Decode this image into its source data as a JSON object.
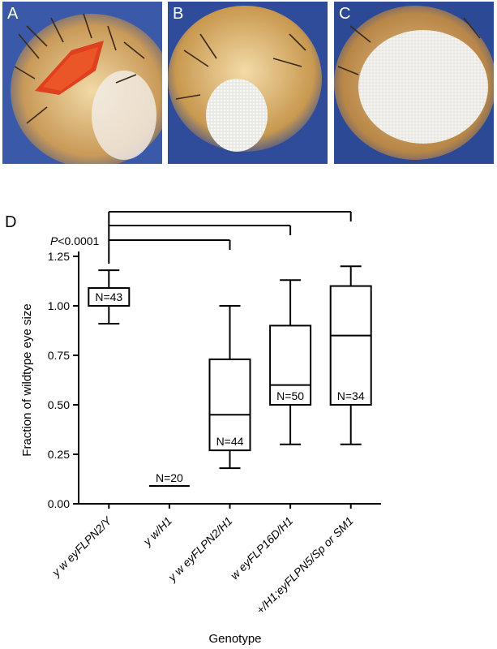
{
  "panels": {
    "a": "A",
    "b": "B",
    "c": "C",
    "d": "D"
  },
  "colors": {
    "background": "#2f4c9a",
    "eye_red": "#e0401e",
    "eye_white": "#e8e8e2",
    "cuticle": "#c79a5e",
    "ink": "#000000"
  },
  "significance": "P<0.0001",
  "chart_data": {
    "type": "boxplot",
    "title": "",
    "xlabel": "Genotype",
    "ylabel": "Fraction of wildtype eye size",
    "ylim": [
      0.0,
      1.25
    ],
    "yticks": [
      "0.00",
      "0.25",
      "0.50",
      "0.75",
      "1.00",
      "1.25"
    ],
    "categories": [
      "y w eyFLPN2/Y",
      "y w/H1",
      "y w eyFLPN2/H1",
      "w eyFLP16D/H1",
      "+/H1;eyFLPN5/Sp or SM1"
    ],
    "boxes": [
      {
        "min": 0.91,
        "q1": 1.0,
        "median": 1.0,
        "q3": 1.09,
        "max": 1.18,
        "n_label": "N=43"
      },
      {
        "min": 0.09,
        "q1": 0.09,
        "median": 0.09,
        "q3": 0.09,
        "max": 0.09,
        "n_label": "N=20"
      },
      {
        "min": 0.18,
        "q1": 0.27,
        "median": 0.45,
        "q3": 0.73,
        "max": 1.0,
        "n_label": "N=44"
      },
      {
        "min": 0.3,
        "q1": 0.5,
        "median": 0.6,
        "q3": 0.9,
        "max": 1.13,
        "n_label": "N=50"
      },
      {
        "min": 0.3,
        "q1": 0.5,
        "median": 0.85,
        "q3": 1.1,
        "max": 1.2,
        "n_label": "N=34"
      }
    ],
    "comparisons": [
      {
        "from": 0,
        "to": 2
      },
      {
        "from": 0,
        "to": 3
      },
      {
        "from": 0,
        "to": 4
      }
    ]
  }
}
